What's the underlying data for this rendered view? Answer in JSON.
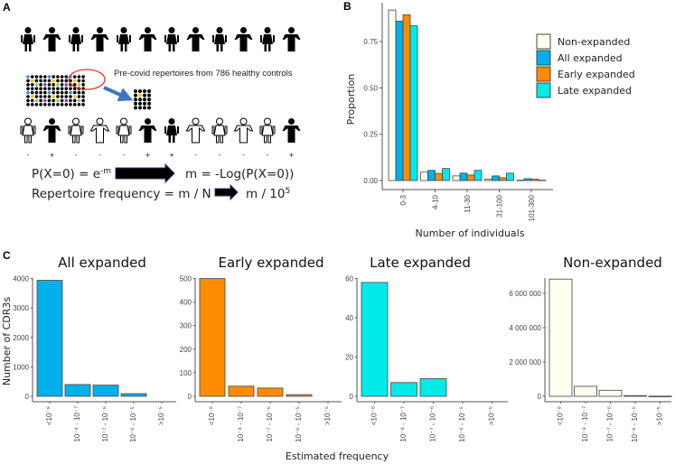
{
  "panel_labels": {
    "a": "A",
    "b": "B",
    "c": "C"
  },
  "panel_a": {
    "note": "Pre-covid repertoires from 786 healthy controls",
    "top_row": [
      "f",
      "m",
      "f",
      "m",
      "f",
      "m",
      "f",
      "m",
      "f",
      "m",
      "f",
      "m"
    ],
    "bottom_row": [
      {
        "sex": "f",
        "filled": false,
        "sign": "-"
      },
      {
        "sex": "m",
        "filled": true,
        "sign": "+"
      },
      {
        "sex": "f",
        "filled": false,
        "sign": "-"
      },
      {
        "sex": "m",
        "filled": false,
        "sign": "-"
      },
      {
        "sex": "f",
        "filled": false,
        "sign": "-"
      },
      {
        "sex": "m",
        "filled": true,
        "sign": "+"
      },
      {
        "sex": "f",
        "filled": true,
        "sign": "+"
      },
      {
        "sex": "m",
        "filled": false,
        "sign": "-"
      },
      {
        "sex": "f",
        "filled": false,
        "sign": "-"
      },
      {
        "sex": "m",
        "filled": false,
        "sign": "-"
      },
      {
        "sex": "f",
        "filled": false,
        "sign": "-"
      },
      {
        "sex": "m",
        "filled": true,
        "sign": "+"
      }
    ],
    "formula1_left": "P(X=0) = e",
    "formula1_sup": "-m",
    "formula1_right": "m = -Log(P(X=0))",
    "formula2_left": "Repertoire frequency = m / N",
    "formula2_right": "m / 10",
    "formula2_sup": "5",
    "dot_colors": {
      "black": "#000000",
      "blue": "#4a7fd4",
      "yellow": "#f2c200",
      "green": "#8cd24a",
      "purple": "#8a3fbf",
      "circle": "#e8322e",
      "arrow": "#4472c4"
    }
  },
  "chart_data": [
    {
      "id": "B",
      "type": "bar",
      "xlabel": "Number of individuals",
      "ylabel": "Proportion",
      "categories": [
        "0-3",
        "4-10",
        "11-30",
        "31-100",
        "101-300"
      ],
      "ylim": [
        0,
        0.95
      ],
      "yticks": [
        0,
        0.25,
        0.5,
        0.75
      ],
      "ytick_labels": [
        "0.00",
        "0.25",
        "0.50",
        "0.75"
      ],
      "legend_position": "right",
      "series": [
        {
          "name": "Non-expanded",
          "color": "#fffff0",
          "values": [
            0.92,
            0.045,
            0.025,
            0.008,
            0.002
          ]
        },
        {
          "name": "All expanded",
          "color": "#00b0eb",
          "values": [
            0.86,
            0.055,
            0.04,
            0.025,
            0.01
          ]
        },
        {
          "name": "Early expanded",
          "color": "#ff8c00",
          "values": [
            0.895,
            0.038,
            0.03,
            0.015,
            0.007
          ]
        },
        {
          "name": "Late expanded",
          "color": "#00eaea",
          "values": [
            0.835,
            0.065,
            0.055,
            0.04,
            0.002
          ]
        }
      ]
    },
    {
      "id": "C",
      "type": "bar",
      "xlabel": "Estimated frequency",
      "ylabel": "Number of CDR3s",
      "categories": [
        "<10⁻⁸",
        "10⁻⁸ - 10⁻⁷",
        "10⁻⁷ - 10⁻⁶",
        "10⁻⁶ - 10⁻⁵",
        ">10⁻⁵"
      ],
      "panels": [
        {
          "title": "All expanded",
          "color": "#00b0eb",
          "values": [
            3940,
            400,
            380,
            90,
            0
          ],
          "ylim": [
            0,
            4200
          ],
          "yticks": [
            0,
            1000,
            2000,
            3000,
            4000
          ],
          "ytick_labels": [
            "0",
            "1000",
            "2000",
            "3000",
            "4000"
          ]
        },
        {
          "title": "Early expanded",
          "color": "#ff8c00",
          "values": [
            500,
            43,
            35,
            7,
            0
          ],
          "ylim": [
            0,
            525
          ],
          "yticks": [
            0,
            100,
            200,
            300,
            400,
            500
          ],
          "ytick_labels": [
            "0",
            "100",
            "200",
            "300",
            "400",
            "500"
          ]
        },
        {
          "title": "Late expanded",
          "color": "#00eaea",
          "values": [
            58,
            7,
            9,
            0,
            0
          ],
          "ylim": [
            0,
            63
          ],
          "yticks": [
            0,
            20,
            40,
            60
          ],
          "ytick_labels": [
            "0",
            "20",
            "40",
            "60"
          ]
        },
        {
          "title": "Non-expanded",
          "color": "#fffff0",
          "values": [
            6820000,
            580000,
            350000,
            40000,
            10000
          ],
          "ylim": [
            0,
            7200000
          ],
          "yticks": [
            0,
            2000000,
            4000000,
            6000000
          ],
          "ytick_labels": [
            "0",
            "2 000 000",
            "4 000 000",
            "6 000 000"
          ]
        }
      ]
    }
  ]
}
